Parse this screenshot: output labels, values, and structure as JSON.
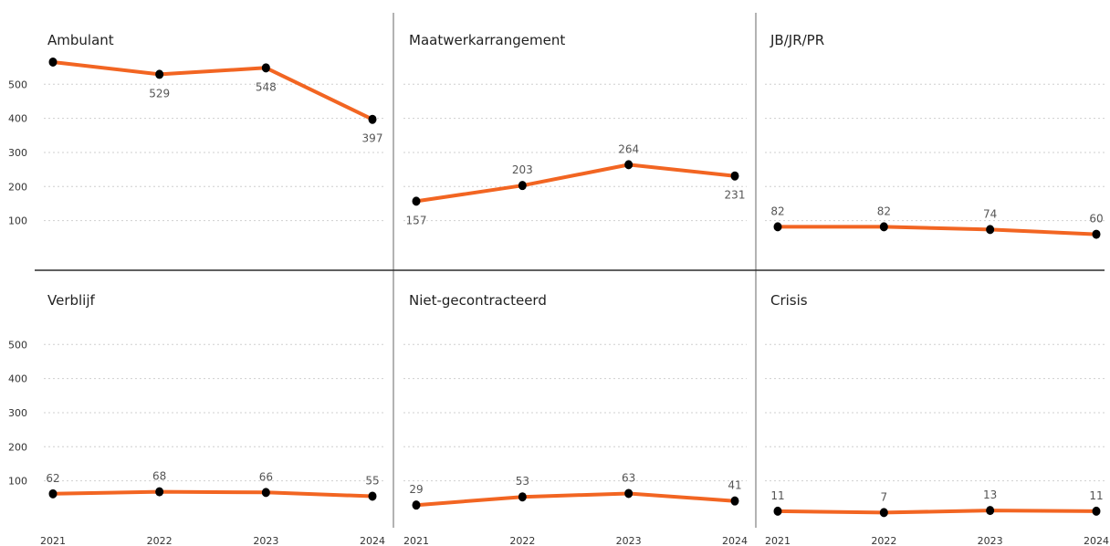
{
  "chart_data": {
    "type": "line",
    "categories": [
      "2021",
      "2022",
      "2023",
      "2024"
    ],
    "y_ticks": [
      100,
      200,
      300,
      400,
      500
    ],
    "ylim": [
      0,
      600
    ],
    "grid": true,
    "colors": {
      "line": "#f26522",
      "marker": "#000000"
    },
    "panels": [
      {
        "title": "Ambulant",
        "values": [
          565,
          529,
          548,
          397
        ],
        "labels": [
          "",
          "529",
          "548",
          "397"
        ],
        "label_pos": [
          "",
          "below",
          "below",
          "below"
        ]
      },
      {
        "title": "Maatwerkarrangement",
        "values": [
          157,
          203,
          264,
          231
        ],
        "labels": [
          "157",
          "203",
          "264",
          "231"
        ],
        "label_pos": [
          "below",
          "above",
          "above",
          "below"
        ]
      },
      {
        "title": "JB/JR/PR",
        "values": [
          82,
          82,
          74,
          60
        ],
        "labels": [
          "82",
          "82",
          "74",
          "60"
        ],
        "label_pos": [
          "above",
          "above",
          "above",
          "above"
        ]
      },
      {
        "title": "Verblijf",
        "values": [
          62,
          68,
          66,
          55
        ],
        "labels": [
          "62",
          "68",
          "66",
          "55"
        ],
        "label_pos": [
          "above",
          "above",
          "above",
          "above"
        ]
      },
      {
        "title": "Niet-gecontracteerd",
        "values": [
          29,
          53,
          63,
          41
        ],
        "labels": [
          "29",
          "53",
          "63",
          "41"
        ],
        "label_pos": [
          "above",
          "above",
          "above",
          "above"
        ]
      },
      {
        "title": "Crisis",
        "values": [
          11,
          7,
          13,
          11
        ],
        "labels": [
          "11",
          "7",
          "13",
          "11"
        ],
        "label_pos": [
          "above",
          "above",
          "above",
          "above"
        ]
      }
    ]
  }
}
